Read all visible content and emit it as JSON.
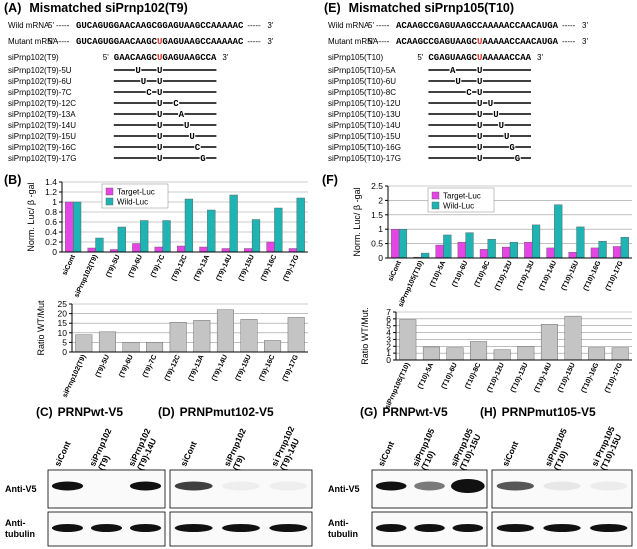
{
  "panels": {
    "A": {
      "label": "(A)",
      "title": "Mismatched siPrnp102(T9)",
      "wild_label": "Wild mRNA",
      "mutant_label": "Mutant mRNA",
      "p5": "5'",
      "p3": "3'",
      "dashes": "-----",
      "wild_seq": "GUCAGUGGAACAAGCGGAGUAAGCCAAAAAC",
      "mutant_seq": [
        "GUCAGUGGAACAAGC",
        "U",
        "GAGUAAGCCAAAAAC"
      ],
      "sirna": {
        "name": "siPrnp102(T9)",
        "seq": [
          "GAACAAGC",
          "U",
          "GAGUAAGCCA"
        ]
      },
      "variants": [
        {
          "name": "siPrnp102(T9)-5U",
          "letter": "U"
        },
        {
          "name": "siPrnp102(T9)-6U",
          "letter": "U"
        },
        {
          "name": "siPrnp102(T9)-7C",
          "letter": "C"
        },
        {
          "name": "siPrnp102(T9)-12C",
          "letter": "C"
        },
        {
          "name": "siPrnp102(T9)-13A",
          "letter": "A"
        },
        {
          "name": "siPrnp102(T9)-14U",
          "letter": "U"
        },
        {
          "name": "siPrnp102(T9)-15U",
          "letter": "U"
        },
        {
          "name": "siPrnp102(T9)-16C",
          "letter": "C"
        },
        {
          "name": "siPrnp102(T9)-17G",
          "letter": "G"
        }
      ]
    },
    "E": {
      "label": "(E)",
      "title": "Mismatched siPrnp105(T10)",
      "wild_label": "Wild mRNA",
      "mutant_label": "Mutant mRNA",
      "p5": "5'",
      "p3": "3'",
      "dashes": "-----",
      "wild_seq": "ACAAGCCGAGUAAGCCAAAAACCAACAUGA",
      "mutant_seq": [
        "ACAAGCCGAGUAAGC",
        "U",
        "AAAAACCAACAUGA"
      ],
      "sirna": {
        "name": "siPrnp105(T10)",
        "seq": [
          "CGAGUAAGC",
          "U",
          "AAAAACCAA"
        ]
      },
      "variants": [
        {
          "name": "siPrnp105(T10)-5A",
          "letter": "A"
        },
        {
          "name": "siPrnp105(T10)-6U",
          "letter": "U"
        },
        {
          "name": "siPrnp105(T10)-8C",
          "letter": "C"
        },
        {
          "name": "siPrnp105(T10)-12U",
          "letter": "U"
        },
        {
          "name": "siPrnp105(T10)-13U",
          "letter": "U"
        },
        {
          "name": "siPrnp105(T10)-14U",
          "letter": "U"
        },
        {
          "name": "siPrnp105(T10)-15U",
          "letter": "U"
        },
        {
          "name": "siPrnp105(T10)-16G",
          "letter": "G"
        },
        {
          "name": "siPrnp105(T10)-17G",
          "letter": "G"
        }
      ]
    },
    "B": {
      "label": "(B)"
    },
    "F": {
      "label": "(F)"
    }
  },
  "chart_data": [
    {
      "type": "bar",
      "ylabel": "Norm. Luc/ β -gal",
      "legend": "upper left",
      "grid": true,
      "categories": [
        "siCont",
        "siPrnp102(T9)",
        "(T9)-5U",
        "(T9)-6U",
        "(T9)-7C",
        "(T9)-12C",
        "(T9)-13A",
        "(T9)-14U",
        "(T9)-15U",
        "(T9)-16C",
        "(T9)-17G"
      ],
      "series": [
        {
          "name": "Target-Luc",
          "color": "#e645e6",
          "values": [
            1,
            0.08,
            0.05,
            0.17,
            0.1,
            0.12,
            0.1,
            0.07,
            0.07,
            0.2,
            0.07
          ]
        },
        {
          "name": "Wild-Luc",
          "color": "#1fb3b3",
          "values": [
            1,
            0.28,
            0.5,
            0.63,
            0.63,
            1.06,
            0.84,
            1.14,
            0.65,
            0.88,
            1.08
          ]
        }
      ],
      "ylim": [
        0,
        1.4
      ],
      "yticks": [
        0,
        0.2,
        0.4,
        0.6,
        0.8,
        1,
        1.2,
        1.4
      ]
    },
    {
      "type": "bar",
      "ylabel": "Ratio WT/Mut",
      "grid": true,
      "color": "#c4c4c4",
      "categories": [
        "siPrnp102(T9)",
        "(T9)-5U",
        "(T9)-6U",
        "(T9)-7C",
        "(T9)-12C",
        "(T9)-13A",
        "(T9)-14U",
        "(T9)-15U",
        "(T9)-16C",
        "(T9)-17G"
      ],
      "values": [
        9,
        10.5,
        5,
        5,
        15.5,
        16.5,
        22,
        17,
        6,
        18
      ],
      "ylim": [
        0,
        25
      ],
      "yticks": [
        0,
        5,
        10,
        15,
        20,
        25
      ]
    },
    {
      "type": "bar",
      "ylabel": "Norm. Luc/ β -gal",
      "legend": "upper left",
      "grid": true,
      "categories": [
        "siCont",
        "siPrnp105(T10)",
        "(T10)-5A",
        "(T10)-6U",
        "(T10)-8C",
        "(T10)-12U",
        "(T10)-13U",
        "(T10)-14U",
        "(T10)-15U",
        "(T10)-16G",
        "(T10)-17G"
      ],
      "series": [
        {
          "name": "Target-Luc",
          "color": "#e645e6",
          "values": [
            1,
            0.03,
            0.45,
            0.55,
            0.3,
            0.38,
            0.55,
            0.35,
            0.2,
            0.35,
            0.4
          ]
        },
        {
          "name": "Wild-Luc",
          "color": "#1fb3b3",
          "values": [
            1,
            0.17,
            0.8,
            0.88,
            0.65,
            0.55,
            1.15,
            1.85,
            1.08,
            0.58,
            0.72
          ]
        }
      ],
      "ylim": [
        0,
        2.5
      ],
      "yticks": [
        0,
        0.5,
        1,
        1.5,
        2,
        2.5
      ]
    },
    {
      "type": "bar",
      "ylabel": "Ratio WT/Mut.",
      "grid": true,
      "color": "#c4c4c4",
      "categories": [
        "siPrnp105(T10)",
        "(T10)-5A",
        "(T10)-6U",
        "(T10)-8C",
        "(T10)-12U",
        "(T10)-13U",
        "(T10)-14U",
        "(T10)-15U",
        "(T10)-16G",
        "(T10)-17G"
      ],
      "values": [
        5.9,
        1.9,
        1.8,
        2.7,
        1.5,
        2,
        5.2,
        6.4,
        1.8,
        1.8
      ],
      "ylim": [
        0,
        7
      ],
      "yticks": [
        0,
        1,
        2,
        3,
        4,
        5,
        6,
        7
      ]
    }
  ],
  "blots": {
    "rows": [
      "Anti-V5",
      [
        "Anti-",
        "tubulin"
      ]
    ],
    "panels": [
      {
        "label": "(C)",
        "title": "PRNPwt-V5",
        "lanes": [
          [
            "siCont"
          ],
          [
            "siPrnp102",
            "(T9)"
          ],
          [
            "siPrnp102",
            "(T9)-14U"
          ]
        ]
      },
      {
        "label": "(D)",
        "title": "PRNPmut102-V5",
        "lanes": [
          [
            "siCont"
          ],
          [
            "siPrnp102",
            "(T9)"
          ],
          [
            "si Prnp102",
            "(T9)-14U"
          ]
        ]
      },
      {
        "label": "(G)",
        "title": "PRNPwt-V5",
        "lanes": [
          [
            "siCont"
          ],
          [
            "siPrnp105",
            "(T10)"
          ],
          [
            "siPrnp105",
            "(T10)-15U"
          ]
        ]
      },
      {
        "label": "(H)",
        "title": "PRNPmut105-V5",
        "lanes": [
          [
            "siCont"
          ],
          [
            "siPrnp105",
            "(T10)"
          ],
          [
            "si Prnp105",
            "(T10)-15U"
          ]
        ]
      }
    ]
  }
}
